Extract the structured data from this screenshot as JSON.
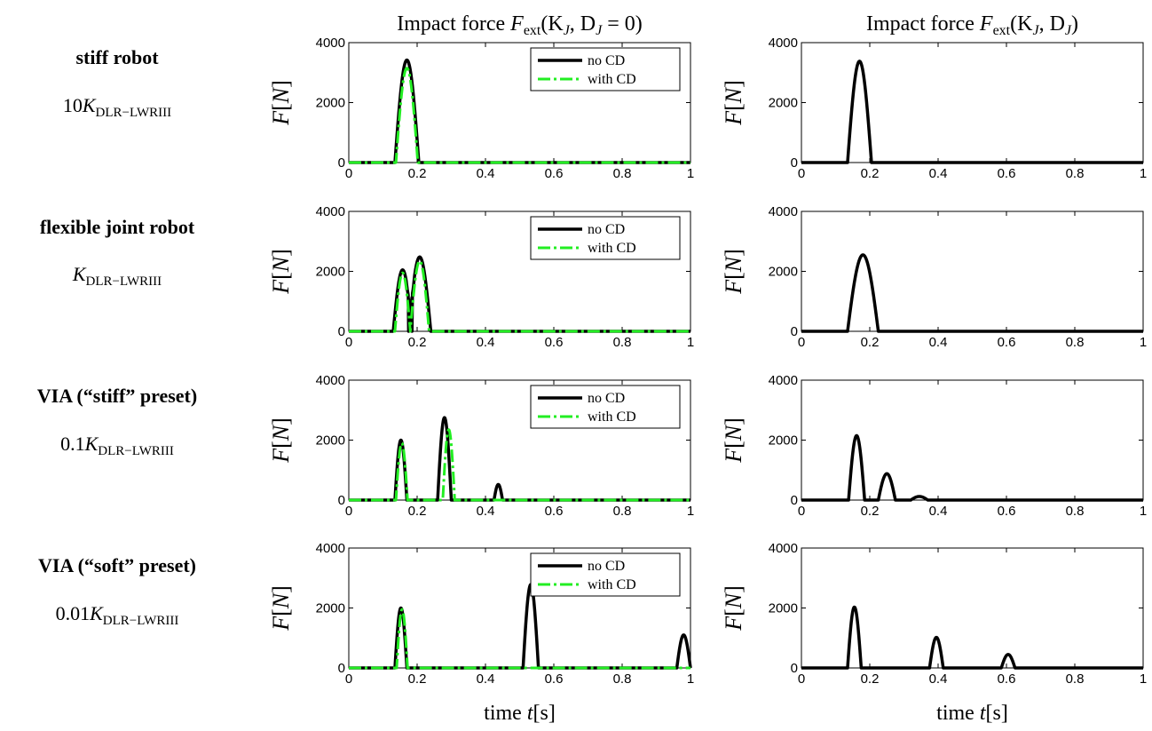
{
  "row_labels": [
    {
      "title": "stiff robot",
      "coef": "10",
      "sym": "K",
      "sub": "DLR−LWRIII"
    },
    {
      "title": "flexible joint robot",
      "coef": "",
      "sym": "K",
      "sub": "DLR−LWRIII"
    },
    {
      "title": "VIA (“stiff” preset)",
      "coef": "0.1",
      "sym": "K",
      "sub": "DLR−LWRIII"
    },
    {
      "title": "VIA (“soft” preset)",
      "coef": "0.01",
      "sym": "K",
      "sub": "DLR−LWRIII"
    }
  ],
  "column_titles": [
    {
      "text": "Impact force ",
      "sym": "F",
      "sub": "ext",
      "args": "(K",
      "j": "J",
      "rest": ", D",
      "j2": "J",
      "tail": " = 0)"
    },
    {
      "text": "Impact force ",
      "sym": "F",
      "sub": "ext",
      "args": "(K",
      "j": "J",
      "rest": ", D",
      "j2": "J",
      "tail": ")"
    }
  ],
  "axis": {
    "ylabel": "F[N]",
    "xlabel": "time t[s]",
    "xlabel_plain": "time ",
    "xlabel_sym": "t",
    "xlabel_unit": "[s]"
  },
  "legend": {
    "no_cd": "no CD",
    "with_cd": "with CD"
  },
  "colors": {
    "no_cd": "#000000",
    "with_cd": "#22ee22"
  },
  "chart_data": [
    {
      "type": "line",
      "row": 0,
      "col": 0,
      "xlim": [
        0,
        1
      ],
      "ylim": [
        0,
        4000
      ],
      "legend": "top-right",
      "x_ticks": [
        "0",
        "0.2",
        "0.4",
        "0.6",
        "0.8",
        "1"
      ],
      "y_ticks": [
        "0",
        "2000",
        "4000"
      ],
      "series": [
        {
          "name": "no CD",
          "pulses": [
            [
              0.135,
              0.205,
              3420
            ]
          ]
        },
        {
          "name": "with CD",
          "pulses": [
            [
              0.138,
              0.202,
              3150
            ]
          ]
        }
      ]
    },
    {
      "type": "line",
      "row": 0,
      "col": 1,
      "xlim": [
        0,
        1
      ],
      "ylim": [
        0,
        4000
      ],
      "legend": "none",
      "x_ticks": [
        "0",
        "0.2",
        "0.4",
        "0.6",
        "0.8",
        "1"
      ],
      "y_ticks": [
        "0",
        "2000",
        "4000"
      ],
      "series": [
        {
          "name": "no CD",
          "pulses": [
            [
              0.135,
              0.205,
              3380
            ]
          ]
        }
      ]
    },
    {
      "type": "line",
      "row": 1,
      "col": 0,
      "xlim": [
        0,
        1
      ],
      "ylim": [
        0,
        4000
      ],
      "legend": "top-right",
      "x_ticks": [
        "0",
        "0.2",
        "0.4",
        "0.6",
        "0.8",
        "1"
      ],
      "y_ticks": [
        "0",
        "2000",
        "4000"
      ],
      "series": [
        {
          "name": "no CD",
          "pulses": [
            [
              0.13,
              0.185,
              2050
            ],
            [
              0.175,
              0.24,
              2480
            ]
          ],
          "valley": [
            0.18,
            1250
          ]
        },
        {
          "name": "with CD",
          "pulses": [
            [
              0.135,
              0.18,
              1950
            ],
            [
              0.18,
              0.235,
              2350
            ]
          ],
          "valley": [
            0.18,
            1250
          ]
        }
      ]
    },
    {
      "type": "line",
      "row": 1,
      "col": 1,
      "xlim": [
        0,
        1
      ],
      "ylim": [
        0,
        4000
      ],
      "legend": "none",
      "x_ticks": [
        "0",
        "0.2",
        "0.4",
        "0.6",
        "0.8",
        "1"
      ],
      "y_ticks": [
        "0",
        "2000",
        "4000"
      ],
      "series": [
        {
          "name": "no CD",
          "pulses": [
            [
              0.135,
              0.225,
              2550
            ]
          ]
        }
      ]
    },
    {
      "type": "line",
      "row": 2,
      "col": 0,
      "xlim": [
        0,
        1
      ],
      "ylim": [
        0,
        4000
      ],
      "legend": "top-right",
      "x_ticks": [
        "0",
        "0.2",
        "0.4",
        "0.6",
        "0.8",
        "1"
      ],
      "y_ticks": [
        "0",
        "2000",
        "4000"
      ],
      "series": [
        {
          "name": "no CD",
          "pulses": [
            [
              0.135,
              0.17,
              2000
            ],
            [
              0.26,
              0.3,
              2750
            ],
            [
              0.425,
              0.45,
              520
            ]
          ]
        },
        {
          "name": "with CD",
          "pulses": [
            [
              0.138,
              0.172,
              1900
            ],
            [
              0.275,
              0.31,
              2350
            ]
          ]
        }
      ]
    },
    {
      "type": "line",
      "row": 2,
      "col": 1,
      "xlim": [
        0,
        1
      ],
      "ylim": [
        0,
        4000
      ],
      "legend": "none",
      "x_ticks": [
        "0",
        "0.2",
        "0.4",
        "0.6",
        "0.8",
        "1"
      ],
      "y_ticks": [
        "0",
        "2000",
        "4000"
      ],
      "series": [
        {
          "name": "no CD",
          "pulses": [
            [
              0.138,
              0.185,
              2150
            ],
            [
              0.225,
              0.275,
              880
            ],
            [
              0.32,
              0.37,
              120
            ]
          ]
        }
      ]
    },
    {
      "type": "line",
      "row": 3,
      "col": 0,
      "xlim": [
        0,
        1
      ],
      "ylim": [
        0,
        4000
      ],
      "legend": "top-right",
      "x_ticks": [
        "0",
        "0.2",
        "0.4",
        "0.6",
        "0.8",
        "1"
      ],
      "y_ticks": [
        "0",
        "2000",
        "4000"
      ],
      "series": [
        {
          "name": "no CD",
          "pulses": [
            [
              0.135,
              0.17,
              2000
            ],
            [
              0.51,
              0.555,
              2780
            ],
            [
              0.96,
              1.0,
              1100
            ]
          ]
        },
        {
          "name": "with CD",
          "pulses": [
            [
              0.14,
              0.172,
              1950
            ]
          ]
        }
      ]
    },
    {
      "type": "line",
      "row": 3,
      "col": 1,
      "xlim": [
        0,
        1
      ],
      "ylim": [
        0,
        4000
      ],
      "legend": "none",
      "x_ticks": [
        "0",
        "0.2",
        "0.4",
        "0.6",
        "0.8",
        "1"
      ],
      "y_ticks": [
        "0",
        "2000",
        "4000"
      ],
      "series": [
        {
          "name": "no CD",
          "pulses": [
            [
              0.135,
              0.175,
              2030
            ],
            [
              0.375,
              0.415,
              1020
            ],
            [
              0.585,
              0.625,
              450
            ]
          ]
        }
      ]
    }
  ]
}
